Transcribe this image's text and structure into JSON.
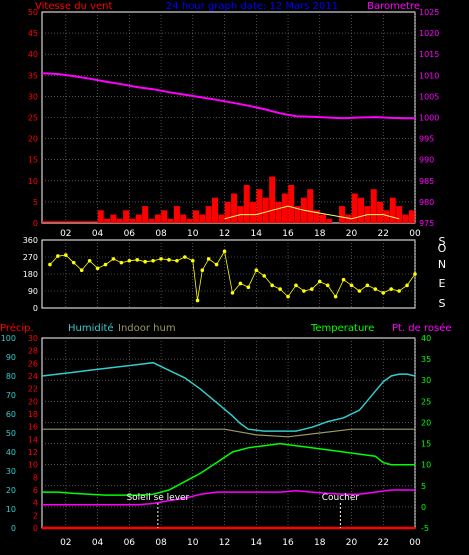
{
  "colors": {
    "background": "#000000",
    "frame": "#ffffff",
    "grid": "#808080",
    "wind_axis": "#ff0000",
    "baro_axis": "#ff00ff",
    "title": "#0000ff",
    "direction": "#ffff00",
    "humidity": "#33cccc",
    "indoor": "#999966",
    "temperature": "#00ff00",
    "dewpoint": "#ff00ff",
    "precip": "#ff0000",
    "left_scale_hum": "#33cccc",
    "left_scale_precip": "#ff0000",
    "sun": "#ffffff"
  },
  "labels": {
    "top_left": "Vitesse du vent",
    "top_center": "24 hour graph date: 12 Mars 2011",
    "top_right": "Barometre",
    "compass": [
      "S",
      "E",
      "N",
      "O",
      "S"
    ],
    "precip": "Précip.",
    "humidity": "Humidité",
    "indoor": "Indoor hum",
    "temperature": "Temperature",
    "dewpoint": "Pt. de rosée",
    "sunrise": "Soleil se lever",
    "sunset": "Coucher"
  },
  "chart_data": [
    {
      "type": "line",
      "title": "24 hour graph date: 12 Mars 2011",
      "x_ticks": [
        "02",
        "04",
        "06",
        "08",
        "10",
        "12",
        "14",
        "16",
        "18",
        "20",
        "22",
        "00"
      ],
      "x_tick_hours": [
        2,
        4,
        6,
        8,
        10,
        12,
        14,
        16,
        18,
        20,
        22,
        24
      ],
      "xlim": [
        0.5,
        24
      ],
      "y_left": {
        "label": "Vitesse du vent",
        "ticks": [
          "0",
          "5",
          "10",
          "15",
          "20",
          "25",
          "30",
          "35",
          "40",
          "45",
          "50"
        ],
        "ylim": [
          0,
          50
        ]
      },
      "y_right": {
        "label": "Barometre",
        "ticks": [
          "975",
          "980",
          "985",
          "990",
          "995",
          "1000",
          "1005",
          "1010",
          "1015",
          "1020",
          "1025"
        ],
        "ylim": [
          975,
          1025
        ]
      },
      "grid": true,
      "series": [
        {
          "name": "Barometre",
          "axis": "right",
          "x": [
            0.5,
            1.5,
            2.5,
            3.5,
            4.5,
            5.5,
            6.5,
            7.5,
            8.5,
            9.5,
            10.5,
            11.5,
            12.5,
            13.5,
            14.5,
            15.5,
            16.5,
            17.5,
            18.5,
            19.5,
            20.5,
            21.5,
            22.5,
            23.5,
            24
          ],
          "values": [
            1010.5,
            1010.3,
            1009.8,
            1009.2,
            1008.5,
            1007.9,
            1007.2,
            1006.7,
            1006.0,
            1005.4,
            1004.8,
            1004.2,
            1003.5,
            1002.8,
            1002.0,
            1001.0,
            1000.3,
            1000.2,
            1000.0,
            999.8,
            1000.0,
            1000.1,
            999.9,
            999.8,
            999.8
          ]
        },
        {
          "name": "Vitesse du vent",
          "axis": "left",
          "x": [
            0.5,
            1,
            1.5,
            2,
            2.5,
            3,
            3.5,
            3.8,
            4.2,
            4.6,
            5,
            5.4,
            5.8,
            6.2,
            6.6,
            7,
            7.4,
            7.8,
            8.2,
            8.6,
            9,
            9.4,
            9.8,
            10.2,
            10.6,
            11,
            11.4,
            11.8,
            12.2,
            12.6,
            13,
            13.4,
            13.8,
            14.2,
            14.6,
            15,
            15.4,
            15.8,
            16.2,
            16.6,
            17,
            17.4,
            17.8,
            18.2,
            18.6,
            19,
            19.4,
            19.8,
            20.2,
            20.6,
            21,
            21.4,
            21.8,
            22.2,
            22.6,
            23,
            23.4,
            23.8
          ],
          "values": [
            0,
            0,
            0,
            0,
            0,
            0,
            0,
            0,
            3,
            1,
            2,
            1,
            3,
            1,
            2,
            4,
            1,
            2,
            3,
            1,
            4,
            2,
            1,
            3,
            2,
            4,
            6,
            2,
            5,
            7,
            4,
            9,
            5,
            8,
            6,
            11,
            5,
            7,
            9,
            4,
            6,
            8,
            3,
            2,
            1,
            0,
            4,
            2,
            7,
            6,
            4,
            8,
            5,
            3,
            6,
            4,
            2,
            3
          ]
        },
        {
          "name": "Gusts",
          "axis": "left",
          "x": [
            12,
            13,
            14,
            15,
            16,
            17,
            20,
            21,
            22,
            23
          ],
          "values": [
            1,
            2,
            2,
            3,
            4,
            3,
            1,
            2,
            2,
            1
          ]
        }
      ]
    },
    {
      "type": "scatter",
      "title": "",
      "x_ticks": [
        "02",
        "04",
        "06",
        "08",
        "10",
        "12",
        "14",
        "16",
        "18",
        "20",
        "22",
        "00"
      ],
      "xlim": [
        0.5,
        24
      ],
      "y_left": {
        "label": "",
        "ticks": [
          "0",
          "90",
          "180",
          "270",
          "360"
        ],
        "ylim": [
          0,
          360
        ]
      },
      "y_right": {
        "label": "",
        "ticks": [
          "S",
          "E",
          "N",
          "O",
          "S"
        ]
      },
      "grid": true,
      "series": [
        {
          "name": "Direction",
          "x": [
            1.0,
            1.5,
            2.0,
            2.5,
            3.0,
            3.5,
            4.0,
            4.5,
            5.0,
            5.5,
            6.0,
            6.5,
            7.0,
            7.5,
            8.0,
            8.5,
            9.0,
            9.5,
            10.0,
            10.3,
            10.6,
            11.0,
            11.5,
            12.0,
            12.5,
            13.0,
            13.5,
            14.0,
            14.5,
            15.0,
            15.5,
            16.0,
            16.5,
            17.0,
            17.5,
            18.0,
            18.5,
            19.0,
            19.5,
            20.0,
            20.5,
            21.0,
            21.5,
            22.0,
            22.5,
            23.0,
            23.5,
            24.0
          ],
          "values": [
            230,
            275,
            280,
            240,
            200,
            250,
            210,
            230,
            260,
            240,
            250,
            255,
            245,
            250,
            260,
            255,
            250,
            270,
            250,
            40,
            200,
            260,
            230,
            300,
            80,
            130,
            110,
            200,
            170,
            120,
            100,
            60,
            120,
            90,
            100,
            140,
            120,
            60,
            150,
            120,
            90,
            120,
            100,
            80,
            100,
            90,
            120,
            180
          ]
        }
      ]
    },
    {
      "type": "line",
      "title": "",
      "x_ticks": [
        "02",
        "04",
        "06",
        "08",
        "10",
        "12",
        "14",
        "16",
        "18",
        "20",
        "22",
        "00"
      ],
      "xlim": [
        0.5,
        24
      ],
      "y_left_hum": {
        "label": "Humidité",
        "ticks": [
          "0",
          "10",
          "20",
          "30",
          "40",
          "50",
          "60",
          "70",
          "80",
          "90",
          "100"
        ],
        "ylim": [
          0,
          100
        ]
      },
      "y_left_precip": {
        "label": "Précip.",
        "ticks": [
          "0",
          "2",
          "4",
          "6",
          "8",
          "10",
          "12",
          "14",
          "16",
          "18",
          "20",
          "22",
          "24",
          "26",
          "28",
          "30"
        ],
        "ylim": [
          0,
          30
        ]
      },
      "y_right": {
        "label": "Temperature",
        "ticks": [
          "-5",
          "0",
          "5",
          "10",
          "15",
          "20",
          "25",
          "30",
          "35",
          "40"
        ],
        "ylim": [
          -5,
          40
        ]
      },
      "grid": true,
      "annotations": [
        {
          "text": "Soleil se lever",
          "x": 7.8
        },
        {
          "text": "Coucher",
          "x": 19.3
        }
      ],
      "series": [
        {
          "name": "Humidité",
          "axis": "left_hum",
          "x": [
            0.5,
            1.5,
            2.5,
            3.5,
            4.5,
            5.5,
            6.5,
            7.5,
            8.5,
            9.5,
            10.5,
            11.5,
            12.5,
            13.0,
            13.5,
            14.5,
            15.5,
            16.5,
            17.5,
            18.5,
            19.5,
            20.5,
            21.0,
            21.5,
            22.0,
            22.5,
            23.0,
            23.5,
            24.0
          ],
          "values": [
            80,
            81,
            82,
            83,
            84,
            85,
            86,
            87,
            83,
            79,
            73,
            66,
            59,
            55,
            52,
            51,
            51,
            51,
            53,
            56,
            58,
            62,
            67,
            72,
            77,
            80,
            81,
            81,
            80
          ]
        },
        {
          "name": "Indoor hum",
          "axis": "left_hum",
          "x": [
            0.5,
            4,
            8,
            12,
            14,
            16,
            18,
            20,
            22,
            24
          ],
          "values": [
            52,
            52,
            52,
            52,
            49,
            48,
            50,
            52,
            52,
            52
          ]
        },
        {
          "name": "Temperature",
          "axis": "right",
          "x": [
            0.5,
            1.5,
            2.5,
            3.5,
            4.5,
            5.5,
            6.5,
            7.5,
            8.5,
            9.5,
            10.5,
            11.5,
            12.5,
            13.5,
            14.5,
            15.5,
            16.5,
            17.5,
            18.5,
            19.5,
            20.5,
            21.5,
            22.0,
            22.5,
            23.0,
            24.0
          ],
          "values": [
            3.5,
            3.5,
            3.2,
            3.0,
            2.8,
            2.8,
            2.8,
            3.0,
            4.0,
            6.0,
            8.0,
            10.5,
            13.0,
            14.0,
            14.5,
            15.0,
            14.5,
            14.0,
            13.5,
            13.0,
            12.5,
            12.0,
            10.5,
            10.0,
            10.0,
            10.0
          ]
        },
        {
          "name": "Pt. de rosée",
          "axis": "right",
          "x": [
            0.5,
            1.5,
            2.5,
            3.5,
            4.5,
            5.5,
            6.5,
            7.5,
            8.5,
            9.5,
            10.5,
            11.5,
            12.5,
            13.5,
            14.5,
            15.5,
            16.5,
            17.5,
            18.5,
            19.5,
            20.5,
            21.5,
            22.5,
            23.5,
            24.0
          ],
          "values": [
            0.5,
            0.5,
            0.5,
            0.5,
            0.5,
            0.5,
            0.5,
            0.8,
            1.5,
            2.0,
            3.0,
            3.5,
            3.5,
            3.5,
            3.5,
            3.5,
            3.8,
            3.5,
            3.2,
            3.0,
            3.0,
            3.5,
            4.0,
            4.0,
            4.0
          ]
        },
        {
          "name": "Précip.",
          "axis": "left_precip",
          "x": [
            0.5,
            24
          ],
          "values": [
            0,
            0
          ]
        }
      ]
    }
  ]
}
